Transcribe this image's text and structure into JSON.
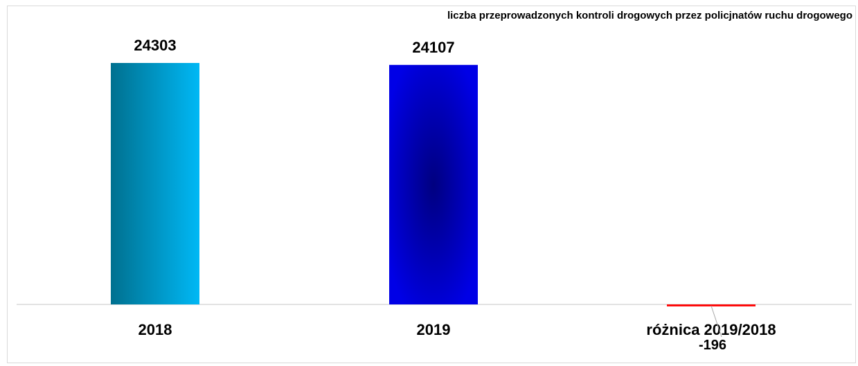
{
  "chart_data": {
    "type": "bar",
    "title": "liczba przeprowadzonych kontroli drogowych przez policjnatów ruchu drogowego",
    "categories": [
      "2018",
      "2019",
      "różnica 2019/2018"
    ],
    "values": [
      24303,
      24107,
      -196
    ],
    "data_labels": [
      "24303",
      "24107",
      "-196"
    ],
    "xlabel": "",
    "ylabel": "",
    "grid": false,
    "legend": "none",
    "colors": {
      "bar_2018_dark": "#00708f",
      "bar_2018_light": "#00b8f5",
      "bar_2019_center": "#000080",
      "bar_2019_edge": "#0000e6",
      "bar_diff": "#ff0000",
      "axis": "#d9d9d9",
      "leader": "#a6a6a6"
    }
  }
}
